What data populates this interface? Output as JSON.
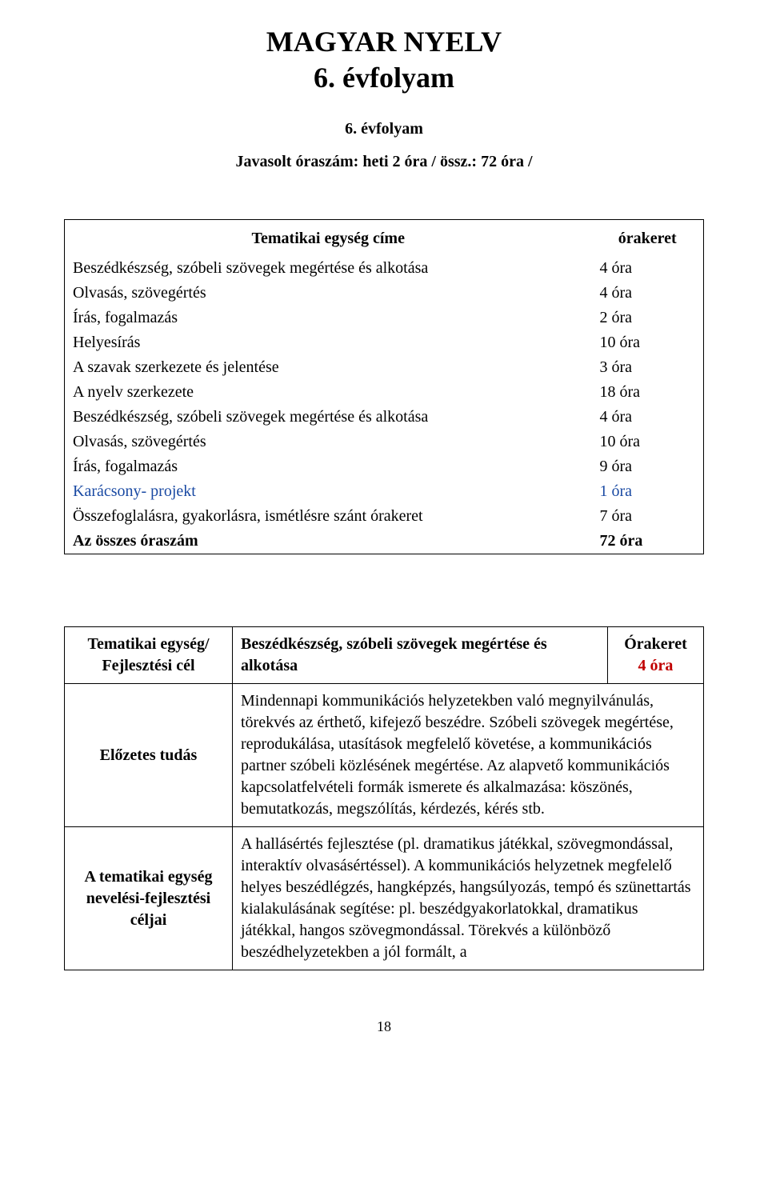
{
  "title_main": "MAGYAR NYELV",
  "title_sub": "6. évfolyam",
  "grade_line": "6. évfolyam",
  "hours_line": "Javasolt óraszám: heti 2 óra / össz.: 72 óra /",
  "topics": {
    "header_left": "Tematikai egység címe",
    "header_right": "órakeret",
    "rows": [
      {
        "name": "Beszédkészség, szóbeli szövegek megértése és alkotása",
        "hours": "4 óra",
        "blue": false,
        "bold": false
      },
      {
        "name": "Olvasás, szövegértés",
        "hours": "4 óra",
        "blue": false,
        "bold": false
      },
      {
        "name": "Írás, fogalmazás",
        "hours": "2 óra",
        "blue": false,
        "bold": false
      },
      {
        "name": "Helyesírás",
        "hours": "10 óra",
        "blue": false,
        "bold": false
      },
      {
        "name": "A szavak szerkezete és jelentése",
        "hours": "3 óra",
        "blue": false,
        "bold": false
      },
      {
        "name": "A nyelv szerkezete",
        "hours": "18 óra",
        "blue": false,
        "bold": false
      },
      {
        "name": "Beszédkészség, szóbeli szövegek megértése és alkotása",
        "hours": "4 óra",
        "blue": false,
        "bold": false
      },
      {
        "name": "Olvasás, szövegértés",
        "hours": "10 óra",
        "blue": false,
        "bold": false
      },
      {
        "name": "Írás, fogalmazás",
        "hours": "9 óra",
        "blue": false,
        "bold": false
      },
      {
        "name": "Karácsony- projekt",
        "hours": "1 óra",
        "blue": true,
        "bold": false
      },
      {
        "name": "Összefoglalásra, gyakorlásra, ismétlésre szánt órakeret",
        "hours": "7 óra",
        "blue": false,
        "bold": false
      },
      {
        "name": "Az összes óraszám",
        "hours": "72 óra",
        "blue": false,
        "bold": true
      }
    ]
  },
  "unit": {
    "label_tematikai": "Tematikai egység/ Fejlesztési cél",
    "unit_title": "Beszédkészség, szóbeli szövegek megértése és alkotása",
    "orakeret_label": "Órakeret",
    "orakeret_hours": "4 óra",
    "label_elozetes": "Előzetes tudás",
    "elozetes_body": "Mindennapi kommunikációs helyzetekben való megnyilvánulás, törekvés az érthető, kifejező beszédre.\nSzóbeli szövegek megértése, reprodukálása, utasítások megfelelő követése, a kommunikációs partner szóbeli közlésének megértése.\nAz alapvető kommunikációs kapcsolatfelvételi formák ismerete és alkalmazása: köszönés, bemutatkozás, megszólítás, kérdezés, kérés stb.",
    "label_celjai": "A tematikai egység nevelési-fejlesztési céljai",
    "celjai_body": "A hallásértés fejlesztése (pl. dramatikus játékkal, szövegmondással, interaktív olvasásértéssel).\nA kommunikációs helyzetnek megfelelő helyes beszédlégzés, hangképzés, hangsúlyozás, tempó és szünettartás kialakulásának segítése: pl. beszédgyakorlatokkal, dramatikus játékkal, hangos szövegmondással.\nTörekvés a különböző beszédhelyzetekben a jól formált, a"
  },
  "page_number": "18",
  "colors": {
    "text": "#000000",
    "blue": "#1a4aa3",
    "red": "#c00000",
    "border": "#000000",
    "background": "#ffffff"
  },
  "typography": {
    "title_fontsize_pt": 27,
    "body_fontsize_pt": 15,
    "font_family": "Times New Roman"
  }
}
